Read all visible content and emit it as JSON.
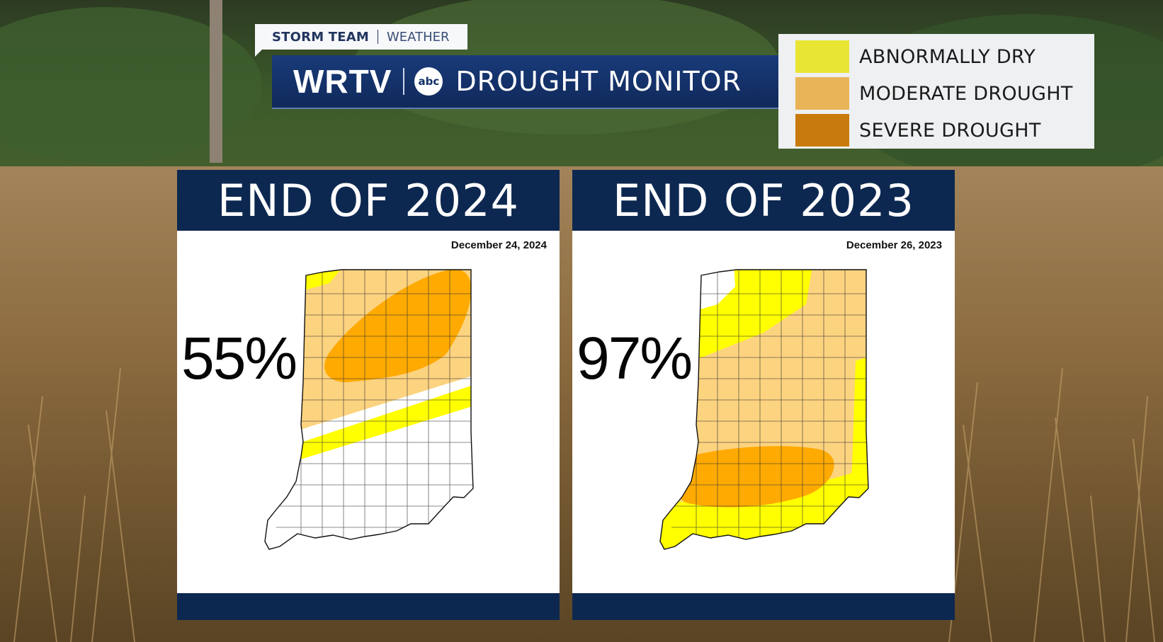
{
  "badge": {
    "brand": "STORM TEAM",
    "section": "WEATHER"
  },
  "title": {
    "station": "WRTV",
    "network": "abc",
    "text": "DROUGHT MONITOR"
  },
  "legend": [
    {
      "label": "ABNORMALLY DRY",
      "color": "#ffff00"
    },
    {
      "label": "MODERATE DROUGHT",
      "color": "#fcd37f"
    },
    {
      "label": "SEVERE DROUGHT",
      "color": "#ffaa00"
    }
  ],
  "panels": [
    {
      "heading": "END OF 2024",
      "date": "December 24, 2024",
      "percent": "55%"
    },
    {
      "heading": "END OF 2023",
      "date": "December 26, 2023",
      "percent": "97%"
    }
  ],
  "colors": {
    "navy": "#0d2850",
    "none": "#ffffff"
  }
}
